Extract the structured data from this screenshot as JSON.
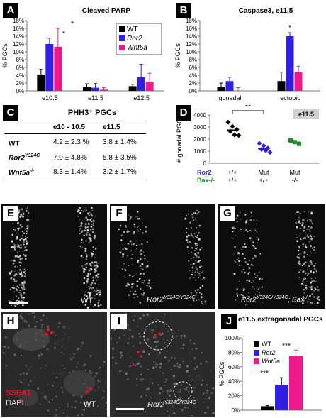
{
  "panels": {
    "A": {
      "label": "A",
      "title": "Cleaved PARP",
      "ylabel": "% PGCs",
      "legend": [
        "WT",
        "Ror2",
        "Wnt5a"
      ]
    },
    "B": {
      "label": "B",
      "title": "Caspase3, e11.5",
      "ylabel": "% PGCs"
    },
    "C": {
      "label": "C",
      "title": "PHH3⁺ PGCs",
      "columns": [
        "",
        "e10 - 10.5",
        "e11.5"
      ],
      "rows": [
        {
          "genotype": "WT",
          "sup": "",
          "v1": "4.2 ± 2.3 %",
          "v2": "3.8 ± 1.4%"
        },
        {
          "genotype": "Ror2",
          "sup": "Y324C",
          "v1": "7.0 ± 4.8%",
          "v2": "5.8 ± 3.5%"
        },
        {
          "genotype": "Wnt5a",
          "sup": "-/-",
          "v1": "8.3 ± 1.4%",
          "v2": "3.2 ± 1.7%"
        }
      ]
    },
    "D": {
      "label": "D",
      "ylabel": "# gonadal PGCs",
      "badge": "e11.5",
      "row_labels": [
        "Ror2",
        "Bax-/-"
      ],
      "groups": [
        {
          "ror2": "+/+",
          "bax": "+/+"
        },
        {
          "ror2": "Mut",
          "bax": "+/+"
        },
        {
          "ror2": "Mut",
          "bax": "-/-"
        }
      ],
      "significance": "**"
    },
    "E": {
      "label": "E",
      "caption": "WT"
    },
    "F": {
      "label": "F",
      "caption": "Ror2 Y324C/Y324C"
    },
    "G": {
      "label": "G",
      "caption": "Ror2 Y324C/Y324C; Bax-/-"
    },
    "H": {
      "label": "H",
      "caption": "WT",
      "stain1": "SSEA1",
      "stain2": "DAPI"
    },
    "I": {
      "label": "I",
      "caption": "Ror2 Y324C/Y324C"
    },
    "J": {
      "label": "J",
      "title": "e11.5 extragonadal PGCs",
      "ylabel": "% PGCs",
      "legend": [
        "WT",
        "Ror2",
        "Wnt5a"
      ]
    }
  },
  "colors": {
    "wt": "#000000",
    "ror2": "#2f1fe0",
    "wnt5a": "#f0198c",
    "green": "#1f8a2e"
  },
  "chart_data": [
    {
      "id": "A",
      "type": "bar",
      "title": "Cleaved PARP",
      "categories": [
        "e10.5",
        "e11.5",
        "e12.5"
      ],
      "series": [
        {
          "name": "WT",
          "values": [
            4.2,
            1.0,
            1.2
          ],
          "err": [
            1.3,
            0.8,
            0.5
          ]
        },
        {
          "name": "Ror2",
          "values": [
            12.0,
            0.8,
            3.5
          ],
          "err": [
            1.5,
            1.1,
            3.3
          ]
        },
        {
          "name": "Wnt5a",
          "values": [
            11.3,
            0.3,
            2.3
          ],
          "err": [
            4.7,
            0.5,
            2.2
          ]
        }
      ],
      "significance": [
        "*",
        "*"
      ],
      "ylabel": "% PGCs",
      "ylim": [
        0,
        18
      ],
      "yticks": [
        "0%",
        "2%",
        "4%",
        "6%",
        "8%",
        "10%",
        "12%",
        "14%",
        "16%",
        "18%"
      ]
    },
    {
      "id": "B",
      "type": "bar",
      "title": "Caspase3, e11.5",
      "categories": [
        "gonadal",
        "ectopic"
      ],
      "series": [
        {
          "name": "WT",
          "values": [
            1.0,
            2.5
          ],
          "err": [
            1.0,
            2.3
          ]
        },
        {
          "name": "Ror2",
          "values": [
            2.5,
            14.0
          ],
          "err": [
            1.0,
            0.9
          ]
        },
        {
          "name": "Wnt5a",
          "values": [
            0.0,
            4.8
          ],
          "err": [
            0.8,
            1.5
          ]
        }
      ],
      "significance": [
        "*"
      ],
      "ylabel": "% PGCs",
      "ylim": [
        0,
        18
      ],
      "yticks": [
        "0%",
        "2%",
        "4%",
        "6%",
        "8%",
        "10%",
        "12%",
        "14%",
        "16%",
        "18%"
      ]
    },
    {
      "id": "D",
      "type": "scatter",
      "ylabel": "# gonadal PGCs",
      "ylim": [
        0,
        4000
      ],
      "yticks": [
        "0",
        "1000",
        "2000",
        "3000",
        "4000"
      ],
      "groups": [
        {
          "name": "+/+ +/+",
          "values": [
            3400,
            3050,
            2800,
            2650,
            2350,
            2300
          ],
          "mean": 2750,
          "marker": "diamond",
          "color": "#000000"
        },
        {
          "name": "Mut +/+",
          "values": [
            1650,
            1450,
            1250,
            1150,
            1050,
            900
          ],
          "mean": 1200,
          "marker": "diamond",
          "color": "#2f1fe0"
        },
        {
          "name": "Mut -/-",
          "values": [
            1900,
            1750,
            1600
          ],
          "mean": 1750,
          "marker": "square",
          "color": "#1f8a2e"
        }
      ]
    },
    {
      "id": "J",
      "type": "bar",
      "title": "e11.5 extragonadal PGCs",
      "categories": [
        ""
      ],
      "series": [
        {
          "name": "WT",
          "values": [
            5.5
          ],
          "err": [
            1.0
          ]
        },
        {
          "name": "Ror2",
          "values": [
            35.0
          ],
          "err": [
            10.0
          ]
        },
        {
          "name": "Wnt5a",
          "values": [
            75.0
          ],
          "err": [
            8.0
          ]
        }
      ],
      "significance": [
        "***",
        "***"
      ],
      "ylabel": "% PGCs",
      "ylim": [
        0,
        100
      ],
      "yticks": [
        "0%",
        "20%",
        "40%",
        "60%",
        "80%",
        "100%"
      ]
    }
  ]
}
